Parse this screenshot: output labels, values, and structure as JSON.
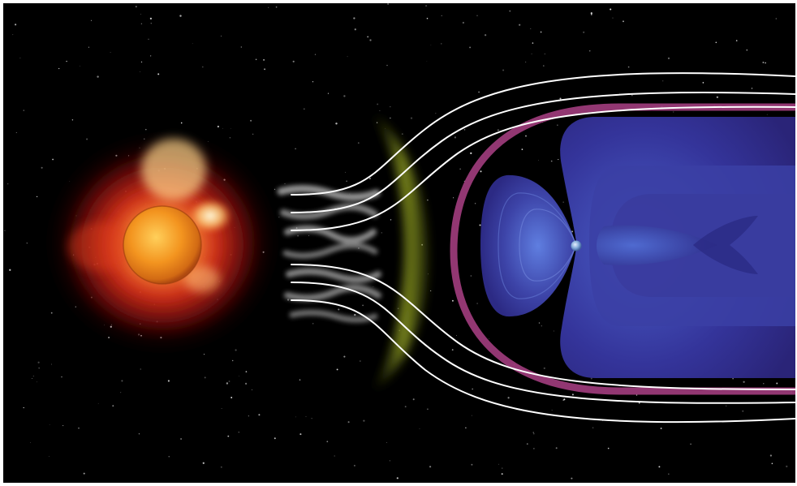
{
  "scene": {
    "components": [
      {
        "id": "sun",
        "icon": "sun-icon"
      },
      {
        "id": "corona",
        "icon": "corona-icon"
      },
      {
        "id": "solar-wind",
        "icon": "solar-wind-icon"
      },
      {
        "id": "bow-shock",
        "icon": "bow-shock-icon"
      },
      {
        "id": "magnetopause",
        "icon": "magnetopause-icon"
      },
      {
        "id": "magnetosphere",
        "icon": "magnetosphere-icon"
      },
      {
        "id": "earth",
        "icon": "earth-icon"
      },
      {
        "id": "field-lines",
        "icon": "field-line-icon"
      }
    ],
    "colors": {
      "background": "#000000",
      "sun_core": "#f6a126",
      "sun_limb": "#c8581a",
      "corona": "#c81e14",
      "corona_bright": "#ffd58a",
      "solar_wind": "#9a9a9a",
      "bow_shock": "#8c9a1e",
      "magnetopause": "#9a3a78",
      "magnetosphere": "#2a2a8c",
      "magnetosphere_light": "#4a62c8",
      "earth": "#7fa6d6",
      "field_lines": "#ffffff"
    }
  }
}
